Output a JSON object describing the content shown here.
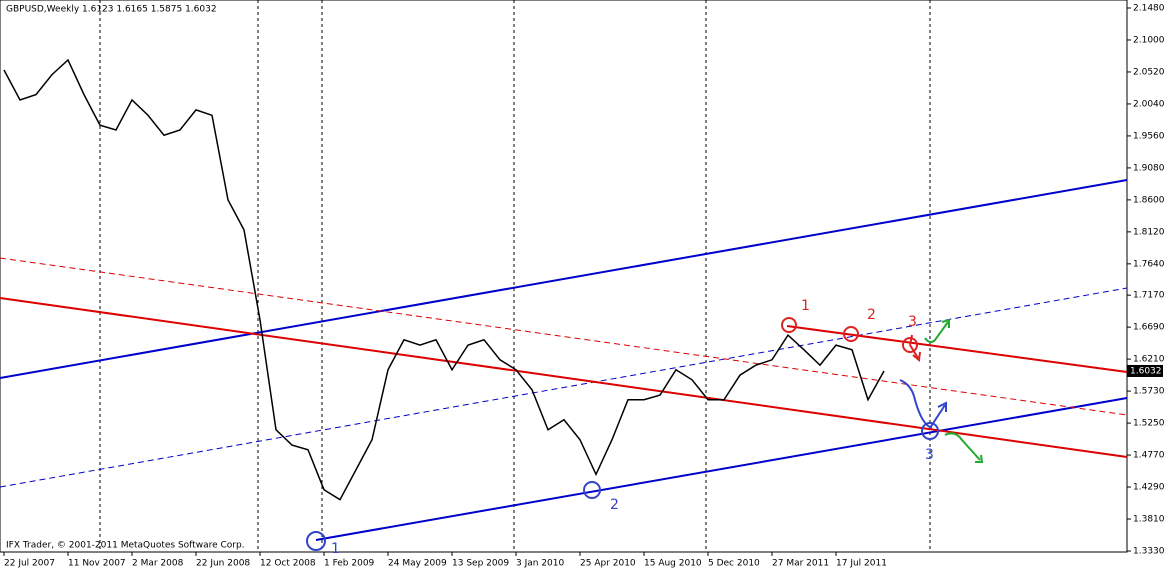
{
  "chart_data": {
    "type": "line",
    "title": "GBPUSD,Weekly  1.6123 1.6165 1.5875 1.6032",
    "footer": "IFX Trader, © 2001-2011 MetaQuotes Software Corp.",
    "color": "#000000",
    "categories": [
      "22 Jul 2007",
      null,
      null,
      null,
      "11 Nov 2007",
      null,
      null,
      null,
      "2 Mar 2008",
      null,
      null,
      null,
      "22 Jun 2008",
      null,
      null,
      null,
      "12 Oct 2008",
      null,
      null,
      null,
      "1 Feb 2009",
      null,
      null,
      null,
      "24 May 2009",
      null,
      null,
      null,
      "13 Sep 2009",
      null,
      null,
      null,
      "3 Jan 2010",
      null,
      null,
      null,
      "25 Apr 2010",
      null,
      null,
      null,
      "15 Aug 2010",
      null,
      null,
      null,
      "5 Dec 2010",
      null,
      null,
      null,
      "27 Mar 2011",
      null,
      null,
      null,
      "17 Jul 2011",
      null,
      null,
      null
    ],
    "values": [
      2.055,
      2.01,
      2.018,
      2.048,
      2.07,
      2.018,
      1.972,
      1.965,
      2.01,
      1.987,
      1.957,
      1.965,
      1.995,
      1.987,
      1.86,
      1.815,
      1.68,
      1.515,
      1.492,
      1.485,
      1.425,
      1.41,
      1.455,
      1.5,
      1.605,
      1.65,
      1.642,
      1.65,
      1.605,
      1.642,
      1.65,
      1.62,
      1.605,
      1.575,
      1.515,
      1.53,
      1.5,
      1.448,
      1.5,
      1.56,
      1.56,
      1.567,
      1.605,
      1.59,
      1.56,
      1.56,
      1.597,
      1.612,
      1.62,
      1.657,
      1.635,
      1.612,
      1.642,
      1.635,
      1.56,
      1.6032
    ],
    "ylim": [
      1.333,
      2.148
    ],
    "yticks": [
      {
        "value": 2.148,
        "label": "2.1480"
      },
      {
        "value": 2.1,
        "label": "2.1000"
      },
      {
        "value": 2.052,
        "label": "2.0520"
      },
      {
        "value": 2.004,
        "label": "2.0040"
      },
      {
        "value": 1.956,
        "label": "1.9560"
      },
      {
        "value": 1.908,
        "label": "1.9080"
      },
      {
        "value": 1.86,
        "label": "1.8600"
      },
      {
        "value": 1.812,
        "label": "1.8120"
      },
      {
        "value": 1.764,
        "label": "1.7640"
      },
      {
        "value": 1.717,
        "label": "1.7170"
      },
      {
        "value": 1.669,
        "label": "1.6690"
      },
      {
        "value": 1.621,
        "label": "1.6210"
      },
      {
        "value": 1.573,
        "label": "1.5730"
      },
      {
        "value": 1.525,
        "label": "1.5250"
      },
      {
        "value": 1.477,
        "label": "1.4770"
      },
      {
        "value": 1.429,
        "label": "1.4290"
      },
      {
        "value": 1.381,
        "label": "1.3810"
      },
      {
        "value": 1.333,
        "label": "1.3330"
      }
    ],
    "annotations": [
      "1",
      "2",
      "3",
      "1",
      "2",
      "3"
    ]
  }
}
